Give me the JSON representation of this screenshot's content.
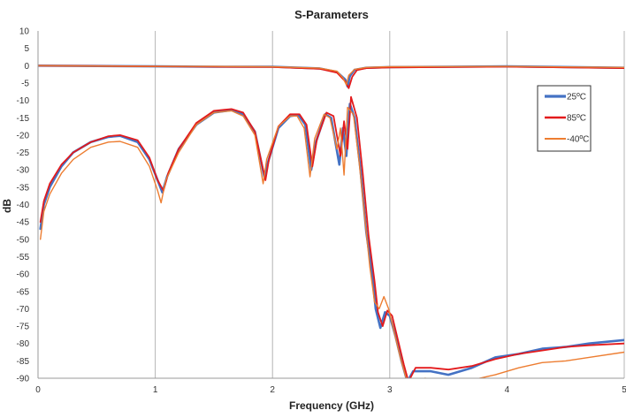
{
  "chart_data": {
    "type": "line",
    "title": "S-Parameters",
    "xlabel": "Frequency (GHz)",
    "ylabel": "dB",
    "xlim": [
      0,
      5
    ],
    "ylim": [
      -90,
      10
    ],
    "xticks": [
      0,
      1,
      2,
      3,
      4,
      5
    ],
    "yticks": [
      10,
      5,
      0,
      -5,
      -10,
      -15,
      -20,
      -25,
      -30,
      -35,
      -40,
      -45,
      -50,
      -55,
      -60,
      -65,
      -70,
      -75,
      -80,
      -85,
      -90
    ],
    "grid": "vertical",
    "legend_position": "right",
    "series": [
      {
        "name": "25ºC",
        "color": "#4472c4",
        "group": "S21",
        "points": [
          [
            0,
            0
          ],
          [
            0.5,
            -0.1
          ],
          [
            1,
            -0.2
          ],
          [
            1.5,
            -0.3
          ],
          [
            2,
            -0.3
          ],
          [
            2.4,
            -0.8
          ],
          [
            2.55,
            -1.8
          ],
          [
            2.62,
            -4
          ],
          [
            2.64,
            -6
          ],
          [
            2.66,
            -3
          ],
          [
            2.7,
            -1.2
          ],
          [
            2.8,
            -0.6
          ],
          [
            3,
            -0.4
          ],
          [
            4,
            -0.2
          ],
          [
            5,
            -0.6
          ]
        ]
      },
      {
        "name": "85ºC",
        "color": "#e31a1c",
        "group": "S21",
        "points": [
          [
            0,
            0
          ],
          [
            0.5,
            -0.1
          ],
          [
            1,
            -0.2
          ],
          [
            1.5,
            -0.3
          ],
          [
            2,
            -0.4
          ],
          [
            2.4,
            -0.9
          ],
          [
            2.55,
            -2
          ],
          [
            2.62,
            -4.5
          ],
          [
            2.65,
            -6.5
          ],
          [
            2.68,
            -3.2
          ],
          [
            2.72,
            -1.3
          ],
          [
            2.8,
            -0.7
          ],
          [
            3,
            -0.5
          ],
          [
            4,
            -0.3
          ],
          [
            5,
            -0.7
          ]
        ]
      },
      {
        "name": "-40ºC",
        "color": "#ed7d31",
        "group": "S21",
        "points": [
          [
            0,
            0
          ],
          [
            0.5,
            -0.1
          ],
          [
            1,
            -0.2
          ],
          [
            1.5,
            -0.2
          ],
          [
            2,
            -0.3
          ],
          [
            2.4,
            -0.7
          ],
          [
            2.55,
            -1.6
          ],
          [
            2.6,
            -3.5
          ],
          [
            2.63,
            -5.5
          ],
          [
            2.65,
            -2.8
          ],
          [
            2.7,
            -1.1
          ],
          [
            2.8,
            -0.5
          ],
          [
            3,
            -0.3
          ],
          [
            4,
            -0.2
          ],
          [
            5,
            -0.5
          ]
        ]
      },
      {
        "name": "25ºC",
        "color": "#4472c4",
        "group": "S11",
        "points": [
          [
            0.02,
            -47
          ],
          [
            0.05,
            -40
          ],
          [
            0.1,
            -35
          ],
          [
            0.2,
            -29
          ],
          [
            0.3,
            -25
          ],
          [
            0.45,
            -22
          ],
          [
            0.6,
            -20.5
          ],
          [
            0.7,
            -20.2
          ],
          [
            0.85,
            -22
          ],
          [
            0.95,
            -27
          ],
          [
            1.02,
            -33
          ],
          [
            1.06,
            -36.5
          ],
          [
            1.1,
            -32
          ],
          [
            1.2,
            -24
          ],
          [
            1.35,
            -17
          ],
          [
            1.5,
            -13.5
          ],
          [
            1.65,
            -12.8
          ],
          [
            1.75,
            -14
          ],
          [
            1.85,
            -19
          ],
          [
            1.93,
            -32
          ],
          [
            1.96,
            -28
          ],
          [
            2.05,
            -18
          ],
          [
            2.15,
            -14.5
          ],
          [
            2.22,
            -14.2
          ],
          [
            2.28,
            -17
          ],
          [
            2.33,
            -30
          ],
          [
            2.37,
            -22
          ],
          [
            2.45,
            -14
          ],
          [
            2.5,
            -15
          ],
          [
            2.57,
            -28.5
          ],
          [
            2.6,
            -18
          ],
          [
            2.63,
            -26
          ],
          [
            2.66,
            -11
          ],
          [
            2.7,
            -15
          ],
          [
            2.75,
            -30
          ],
          [
            2.8,
            -48
          ],
          [
            2.85,
            -60
          ],
          [
            2.88,
            -70
          ],
          [
            2.92,
            -75.5
          ],
          [
            2.96,
            -71
          ],
          [
            3.0,
            -72
          ],
          [
            3.05,
            -78
          ],
          [
            3.1,
            -85
          ],
          [
            3.15,
            -91
          ],
          [
            3.2,
            -88
          ],
          [
            3.35,
            -88
          ],
          [
            3.5,
            -89
          ],
          [
            3.7,
            -87
          ],
          [
            3.9,
            -84
          ],
          [
            4.1,
            -83
          ],
          [
            4.3,
            -81.5
          ],
          [
            4.5,
            -81
          ],
          [
            4.7,
            -80
          ],
          [
            5,
            -79
          ]
        ]
      },
      {
        "name": "85ºC",
        "color": "#e31a1c",
        "group": "S11",
        "points": [
          [
            0.02,
            -45
          ],
          [
            0.05,
            -39
          ],
          [
            0.1,
            -34
          ],
          [
            0.2,
            -28.5
          ],
          [
            0.3,
            -25
          ],
          [
            0.45,
            -22
          ],
          [
            0.6,
            -20.3
          ],
          [
            0.7,
            -20
          ],
          [
            0.85,
            -21.5
          ],
          [
            0.95,
            -26.5
          ],
          [
            1.02,
            -33
          ],
          [
            1.07,
            -36
          ],
          [
            1.11,
            -31
          ],
          [
            1.2,
            -24
          ],
          [
            1.35,
            -16.5
          ],
          [
            1.5,
            -13
          ],
          [
            1.65,
            -12.5
          ],
          [
            1.75,
            -13.5
          ],
          [
            1.85,
            -19
          ],
          [
            1.94,
            -33
          ],
          [
            1.97,
            -27
          ],
          [
            2.05,
            -17.5
          ],
          [
            2.15,
            -14
          ],
          [
            2.23,
            -14
          ],
          [
            2.29,
            -17
          ],
          [
            2.34,
            -29
          ],
          [
            2.38,
            -21
          ],
          [
            2.46,
            -13.5
          ],
          [
            2.52,
            -14.5
          ],
          [
            2.58,
            -26
          ],
          [
            2.61,
            -16
          ],
          [
            2.64,
            -24
          ],
          [
            2.67,
            -9
          ],
          [
            2.72,
            -15
          ],
          [
            2.77,
            -31
          ],
          [
            2.82,
            -49
          ],
          [
            2.87,
            -62
          ],
          [
            2.9,
            -71
          ],
          [
            2.94,
            -75
          ],
          [
            2.98,
            -70.5
          ],
          [
            3.02,
            -72
          ],
          [
            3.07,
            -79
          ],
          [
            3.12,
            -86
          ],
          [
            3.16,
            -91
          ],
          [
            3.22,
            -87
          ],
          [
            3.35,
            -87
          ],
          [
            3.5,
            -87.5
          ],
          [
            3.7,
            -86.5
          ],
          [
            3.9,
            -84.5
          ],
          [
            4.1,
            -83
          ],
          [
            4.3,
            -82
          ],
          [
            4.5,
            -81
          ],
          [
            4.7,
            -80.5
          ],
          [
            5,
            -80
          ]
        ]
      },
      {
        "name": "-40ºC",
        "color": "#ed7d31",
        "group": "S11",
        "points": [
          [
            0.02,
            -50
          ],
          [
            0.05,
            -42
          ],
          [
            0.1,
            -37
          ],
          [
            0.2,
            -31
          ],
          [
            0.3,
            -27
          ],
          [
            0.45,
            -23.5
          ],
          [
            0.6,
            -22
          ],
          [
            0.7,
            -21.8
          ],
          [
            0.85,
            -23.5
          ],
          [
            0.95,
            -29
          ],
          [
            1.02,
            -36
          ],
          [
            1.05,
            -39.5
          ],
          [
            1.09,
            -33
          ],
          [
            1.2,
            -25
          ],
          [
            1.35,
            -17
          ],
          [
            1.5,
            -13.5
          ],
          [
            1.65,
            -13
          ],
          [
            1.75,
            -14.5
          ],
          [
            1.85,
            -20
          ],
          [
            1.92,
            -34
          ],
          [
            1.95,
            -27
          ],
          [
            2.05,
            -17.5
          ],
          [
            2.15,
            -14.5
          ],
          [
            2.21,
            -14.5
          ],
          [
            2.27,
            -18
          ],
          [
            2.32,
            -32
          ],
          [
            2.36,
            -21
          ],
          [
            2.44,
            -14
          ],
          [
            2.49,
            -15
          ],
          [
            2.55,
            -24
          ],
          [
            2.58,
            -18
          ],
          [
            2.61,
            -31.5
          ],
          [
            2.64,
            -12
          ],
          [
            2.69,
            -14
          ],
          [
            2.74,
            -28
          ],
          [
            2.79,
            -45
          ],
          [
            2.83,
            -58
          ],
          [
            2.87,
            -68
          ],
          [
            2.91,
            -70
          ],
          [
            2.95,
            -66.5
          ],
          [
            2.99,
            -70
          ],
          [
            3.04,
            -77
          ],
          [
            3.09,
            -84
          ],
          [
            3.14,
            -90
          ],
          [
            3.2,
            -91
          ],
          [
            3.3,
            -90
          ],
          [
            3.5,
            -91
          ],
          [
            3.7,
            -90.5
          ],
          [
            3.9,
            -89
          ],
          [
            4.1,
            -87
          ],
          [
            4.3,
            -85.5
          ],
          [
            4.5,
            -85
          ],
          [
            4.7,
            -84
          ],
          [
            5,
            -82.5
          ]
        ]
      }
    ]
  }
}
